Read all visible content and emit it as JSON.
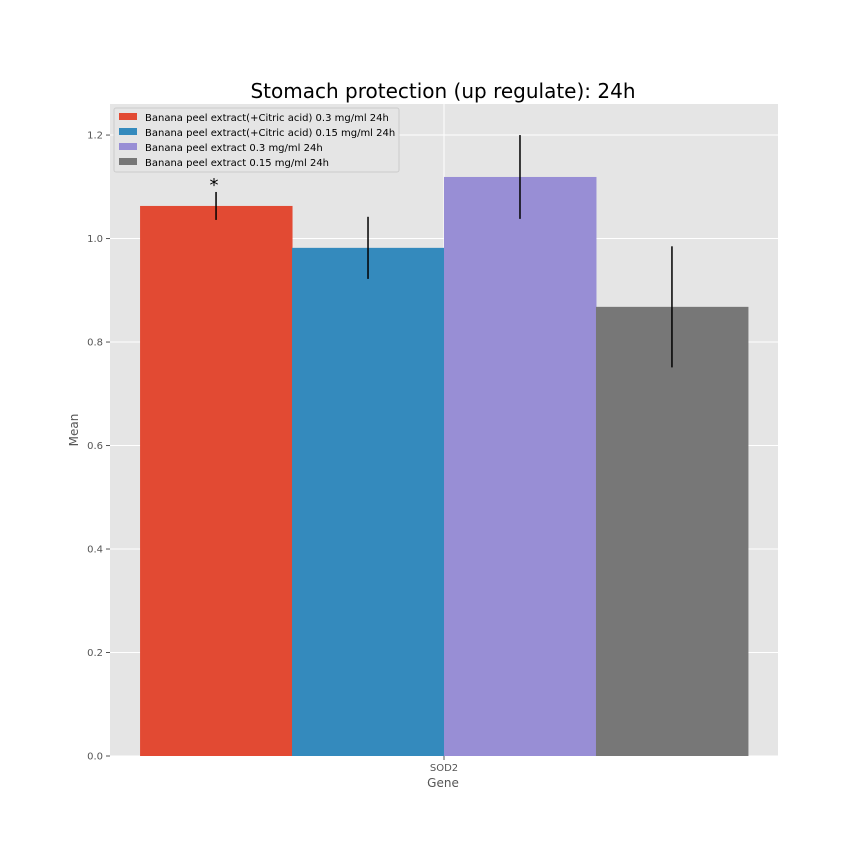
{
  "chart_data": {
    "type": "bar",
    "title": "Stomach protection (up regulate): 24h",
    "xlabel": "Gene",
    "ylabel": "Mean",
    "categories": [
      "SOD2"
    ],
    "ylim": [
      0,
      1.26
    ],
    "yticks": [
      "0.0",
      "0.2",
      "0.4",
      "0.6",
      "0.8",
      "1.0",
      "1.2"
    ],
    "grid": true,
    "legend_position": "top-left",
    "series": [
      {
        "name": "Banana peel extract(+Citric acid) 0.3 mg/ml 24h",
        "values": [
          1.063
        ],
        "error": [
          0.027
        ],
        "color": "#E24A33",
        "annotation": "*"
      },
      {
        "name": "Banana peel extract(+Citric acid) 0.15 mg/ml 24h",
        "values": [
          0.982
        ],
        "error": [
          0.06
        ],
        "color": "#348ABD",
        "annotation": ""
      },
      {
        "name": "Banana peel extract 0.3 mg/ml 24h",
        "values": [
          1.119
        ],
        "error": [
          0.081
        ],
        "color": "#988ED5",
        "annotation": ""
      },
      {
        "name": "Banana peel extract 0.15 mg/ml 24h",
        "values": [
          0.868
        ],
        "error": [
          0.117
        ],
        "color": "#777777",
        "annotation": ""
      }
    ],
    "colors": {
      "plot_background": "#E5E5E5",
      "grid": "#FFFFFF",
      "tick_text": "#555555",
      "error_bar": "#000000"
    }
  }
}
